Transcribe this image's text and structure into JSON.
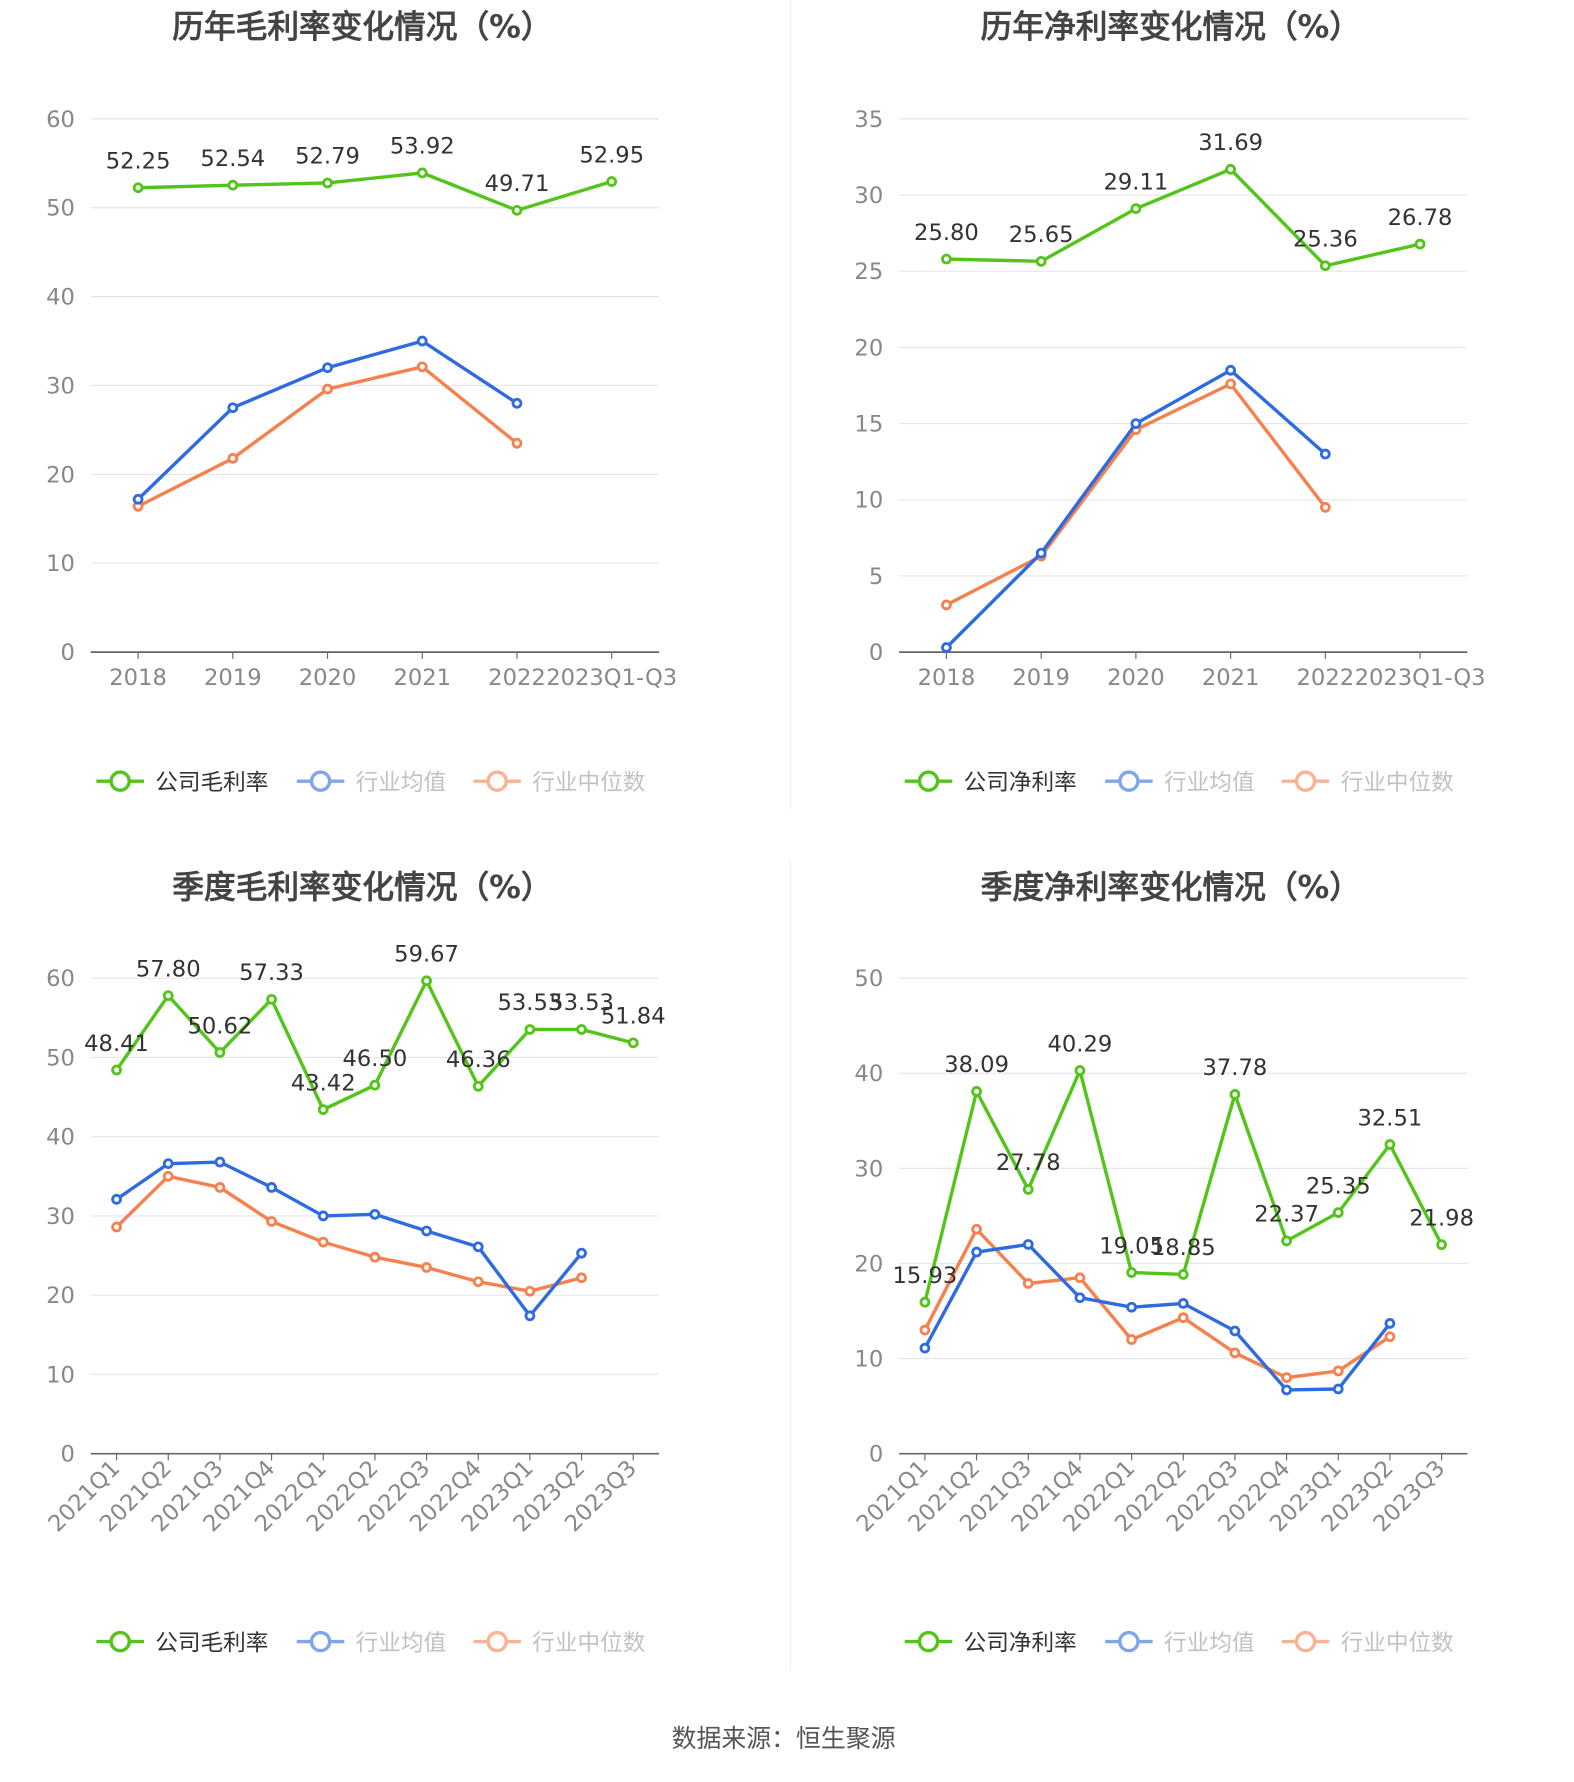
{
  "source": "数据来源：恒生聚源",
  "colors": {
    "company": "#52c41a",
    "avg": "#2f6be0",
    "median": "#f5814f",
    "grid": "#e3e6f0",
    "axis": "#666666"
  },
  "chart_data": [
    {
      "type": "line",
      "title": "历年毛利率变化情况（%）",
      "categories": [
        "2018",
        "2019",
        "2020",
        "2021",
        "2022",
        "2023Q1-Q3"
      ],
      "ylim": [
        0,
        60
      ],
      "yticks": [
        0,
        10,
        20,
        30,
        40,
        50,
        60
      ],
      "legend_position": "bottom",
      "series": [
        {
          "name": "公司毛利率",
          "key": "company",
          "values": [
            52.25,
            52.54,
            52.79,
            53.92,
            49.71,
            52.95
          ],
          "labels": [
            "52.25",
            "52.54",
            "52.79",
            "53.92",
            "49.71",
            "52.95"
          ]
        },
        {
          "name": "行业均值",
          "key": "avg",
          "values": [
            17.2,
            27.5,
            32.0,
            35.0,
            28.0,
            null
          ]
        },
        {
          "name": "行业中位数",
          "key": "median",
          "values": [
            16.4,
            21.8,
            29.6,
            32.1,
            23.5,
            null
          ]
        }
      ]
    },
    {
      "type": "line",
      "title": "历年净利率变化情况（%）",
      "categories": [
        "2018",
        "2019",
        "2020",
        "2021",
        "2022",
        "2023Q1-Q3"
      ],
      "ylim": [
        0,
        35
      ],
      "yticks": [
        0,
        5,
        10,
        15,
        20,
        25,
        30,
        35
      ],
      "legend_position": "bottom",
      "series": [
        {
          "name": "公司净利率",
          "key": "company",
          "values": [
            25.8,
            25.65,
            29.11,
            31.69,
            25.36,
            26.78
          ],
          "labels": [
            "25.80",
            "25.65",
            "29.11",
            "31.69",
            "25.36",
            "26.78"
          ]
        },
        {
          "name": "行业均值",
          "key": "avg",
          "values": [
            0.3,
            6.5,
            15.0,
            18.5,
            13.0,
            null
          ]
        },
        {
          "name": "行业中位数",
          "key": "median",
          "values": [
            3.1,
            6.3,
            14.6,
            17.6,
            9.5,
            null
          ]
        }
      ]
    },
    {
      "type": "line",
      "title": "季度毛利率变化情况（%）",
      "categories": [
        "2021Q1",
        "2021Q2",
        "2021Q3",
        "2021Q4",
        "2022Q1",
        "2022Q2",
        "2022Q3",
        "2022Q4",
        "2023Q1",
        "2023Q2",
        "2023Q3"
      ],
      "ylim": [
        0,
        60
      ],
      "yticks": [
        0,
        10,
        20,
        30,
        40,
        50,
        60
      ],
      "legend_position": "bottom",
      "series": [
        {
          "name": "公司毛利率",
          "key": "company",
          "values": [
            48.41,
            57.8,
            50.62,
            57.33,
            43.42,
            46.5,
            59.67,
            46.36,
            53.53,
            53.53,
            51.84
          ],
          "labels": [
            "48.41",
            "57.80",
            "50.62",
            "57.33",
            "43.42",
            "46.50",
            "59.67",
            "46.36",
            "53.53",
            "53.53",
            "51.84"
          ]
        },
        {
          "name": "行业均值",
          "key": "avg",
          "values": [
            32.1,
            36.6,
            36.8,
            33.6,
            30.0,
            30.2,
            28.1,
            26.1,
            17.4,
            25.3,
            null
          ]
        },
        {
          "name": "行业中位数",
          "key": "median",
          "values": [
            28.6,
            35.0,
            33.6,
            29.3,
            26.7,
            24.8,
            23.5,
            21.7,
            20.5,
            22.2,
            null
          ]
        }
      ]
    },
    {
      "type": "line",
      "title": "季度净利率变化情况（%）",
      "categories": [
        "2021Q1",
        "2021Q2",
        "2021Q3",
        "2021Q4",
        "2022Q1",
        "2022Q2",
        "2022Q3",
        "2022Q4",
        "2023Q1",
        "2023Q2",
        "2023Q3"
      ],
      "ylim": [
        0,
        50
      ],
      "yticks": [
        0,
        10,
        20,
        30,
        40,
        50
      ],
      "legend_position": "bottom",
      "series": [
        {
          "name": "公司净利率",
          "key": "company",
          "values": [
            15.93,
            38.09,
            27.78,
            40.29,
            19.05,
            18.85,
            37.78,
            22.37,
            25.35,
            32.51,
            21.98
          ],
          "labels": [
            "15.93",
            "38.09",
            "27.78",
            "40.29",
            "19.05",
            "18.85",
            "37.78",
            "22.37",
            "25.35",
            "32.51",
            "21.98"
          ]
        },
        {
          "name": "行业均值",
          "key": "avg",
          "values": [
            11.1,
            21.2,
            22.0,
            16.4,
            15.4,
            15.8,
            12.9,
            6.7,
            6.8,
            13.7,
            null
          ]
        },
        {
          "name": "行业中位数",
          "key": "median",
          "values": [
            13.0,
            23.6,
            17.9,
            18.5,
            12.0,
            14.3,
            10.6,
            8.0,
            8.7,
            12.3,
            null
          ]
        }
      ]
    }
  ]
}
